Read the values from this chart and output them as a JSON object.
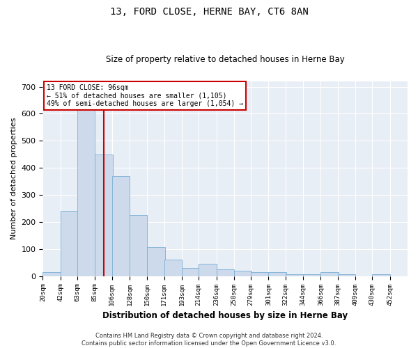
{
  "title": "13, FORD CLOSE, HERNE BAY, CT6 8AN",
  "subtitle": "Size of property relative to detached houses in Herne Bay",
  "xlabel": "Distribution of detached houses by size in Herne Bay",
  "ylabel": "Number of detached properties",
  "footer_line1": "Contains HM Land Registry data © Crown copyright and database right 2024.",
  "footer_line2": "Contains public sector information licensed under the Open Government Licence v3.0.",
  "bar_color": "#cddaeb",
  "bar_edge_color": "#7aaed6",
  "background_color": "#e8eef5",
  "annotation_line1": "13 FORD CLOSE: 96sqm",
  "annotation_line2": "← 51% of detached houses are smaller (1,105)",
  "annotation_line3": "49% of semi-detached houses are larger (1,054) →",
  "annotation_box_color": "#ffffff",
  "annotation_box_edge": "#cc0000",
  "vline_color": "#cc0000",
  "property_sqm": 96,
  "categories": [
    "20sqm",
    "42sqm",
    "63sqm",
    "85sqm",
    "106sqm",
    "128sqm",
    "150sqm",
    "171sqm",
    "193sqm",
    "214sqm",
    "236sqm",
    "258sqm",
    "279sqm",
    "301sqm",
    "322sqm",
    "344sqm",
    "366sqm",
    "387sqm",
    "409sqm",
    "430sqm",
    "452sqm"
  ],
  "bin_edges": [
    20,
    42,
    63,
    85,
    106,
    128,
    150,
    171,
    193,
    214,
    236,
    258,
    279,
    301,
    322,
    344,
    366,
    387,
    409,
    430,
    452
  ],
  "values": [
    15,
    240,
    640,
    450,
    370,
    225,
    108,
    62,
    30,
    45,
    25,
    20,
    15,
    15,
    8,
    8,
    15,
    8,
    0,
    8,
    0
  ],
  "ylim": [
    0,
    720
  ],
  "yticks": [
    0,
    100,
    200,
    300,
    400,
    500,
    600,
    700
  ]
}
